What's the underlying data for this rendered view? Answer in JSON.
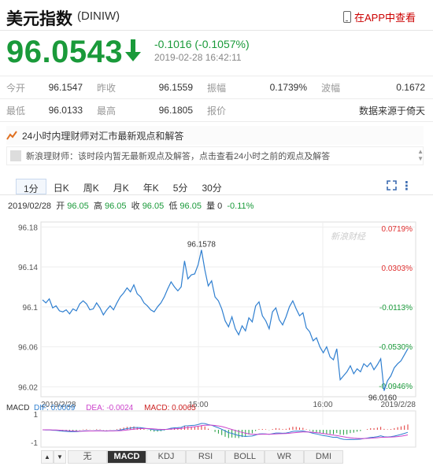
{
  "header": {
    "title": "美元指数",
    "code": "(DINIW)",
    "app_link": "在APP中查看"
  },
  "quote": {
    "price": "96.0543",
    "change": "-0.1016 (-0.1057%)",
    "timestamp": "2019-02-28 16:42:11",
    "direction": "down",
    "color": "#1a9a3a"
  },
  "stats": {
    "row1": [
      {
        "label": "今开",
        "value": "96.1547"
      },
      {
        "label": "昨收",
        "value": "96.1559"
      },
      {
        "label": "振幅",
        "value": "0.1739%"
      },
      {
        "label": "波幅",
        "value": "0.1672"
      }
    ],
    "row2": [
      {
        "label": "最低",
        "value": "96.0133"
      },
      {
        "label": "最高",
        "value": "96.1805"
      },
      {
        "label": "报价",
        "value": "数据来源于倚天"
      }
    ]
  },
  "banners": {
    "headline": "24小时内理财师对汇市最新观点和解答",
    "message": "新浪理财师：该时段内暂无最新观点及解答，点击查看24小时之前的观点及解答"
  },
  "period_tabs": [
    "1分",
    "日K",
    "周K",
    "月K",
    "年K",
    "5分",
    "30分"
  ],
  "active_period": "1分",
  "quote_line": {
    "date": "2019/02/28",
    "open_label": "开",
    "open": "96.05",
    "high_label": "高",
    "high": "96.05",
    "close_label": "收",
    "close": "96.05",
    "low_label": "低",
    "low": "96.05",
    "vol_label": "量",
    "vol": "0",
    "pct": "-0.11%"
  },
  "watermark": "新浪财经",
  "chart_data": {
    "type": "line",
    "title": "",
    "x_ticks": [
      "2019/2/28",
      "15:00",
      "16:00",
      "2019/2/28"
    ],
    "y_ticks": [
      "96.18",
      "96.14",
      "96.1",
      "96.06",
      "96.02"
    ],
    "right_ticks": [
      "0.0719%",
      "0.0303%",
      "-0.0113%",
      "-0.0530%",
      "-0.0946%"
    ],
    "ylim": [
      96.01,
      96.185
    ],
    "annotations": {
      "max": "96.1578",
      "min": "96.0160"
    },
    "series": [
      {
        "values": [
          96.107,
          96.104,
          96.108,
          96.099,
          96.101,
          96.096,
          96.095,
          96.097,
          96.093,
          96.098,
          96.096,
          96.103,
          96.106,
          96.103,
          96.097,
          96.098,
          96.104,
          96.099,
          96.092,
          96.097,
          96.101,
          96.097,
          96.104,
          96.11,
          96.114,
          96.119,
          96.115,
          96.122,
          96.113,
          96.11,
          96.104,
          96.101,
          96.097,
          96.095,
          96.1,
          96.104,
          96.11,
          96.118,
          96.125,
          96.12,
          96.116,
          96.12,
          96.146,
          96.128,
          96.132,
          96.133,
          96.142,
          96.157,
          96.137,
          96.121,
          96.126,
          96.11,
          96.106,
          96.098,
          96.086,
          96.08,
          96.09,
          96.078,
          96.072,
          96.081,
          96.076,
          96.089,
          96.085,
          96.101,
          96.105,
          96.091,
          96.086,
          96.078,
          96.095,
          96.099,
          96.087,
          96.082,
          96.09,
          96.1,
          96.106,
          96.098,
          96.091,
          96.094,
          96.079,
          96.075,
          96.066,
          96.069,
          96.06,
          96.054,
          96.06,
          96.05,
          96.047,
          96.058,
          96.027,
          96.031,
          96.035,
          96.041,
          96.033,
          96.038,
          96.035,
          96.043,
          96.04,
          96.044,
          96.037,
          96.042,
          96.048,
          96.016,
          96.026,
          96.031,
          96.039,
          96.043,
          96.046,
          96.052,
          96.058
        ]
      }
    ],
    "macd": {
      "dif_label": "DIF:",
      "dif": "0.0009",
      "dea_label": "DEA:",
      "dea": "-0.0024",
      "macd_label": "MACD:",
      "macd": "0.0065",
      "y_ticks": [
        "1",
        "-1"
      ]
    }
  },
  "indicator_tabs": [
    "无",
    "MACD",
    "KDJ",
    "RSI",
    "BOLL",
    "WR",
    "DMI"
  ],
  "active_indicator": "MACD",
  "colors": {
    "up": "#e03030",
    "down": "#1a9a3a",
    "line": "#2f7fd0",
    "dif": "#2f7fd0",
    "dea": "#cc44cc",
    "macd": "#cc2222"
  }
}
